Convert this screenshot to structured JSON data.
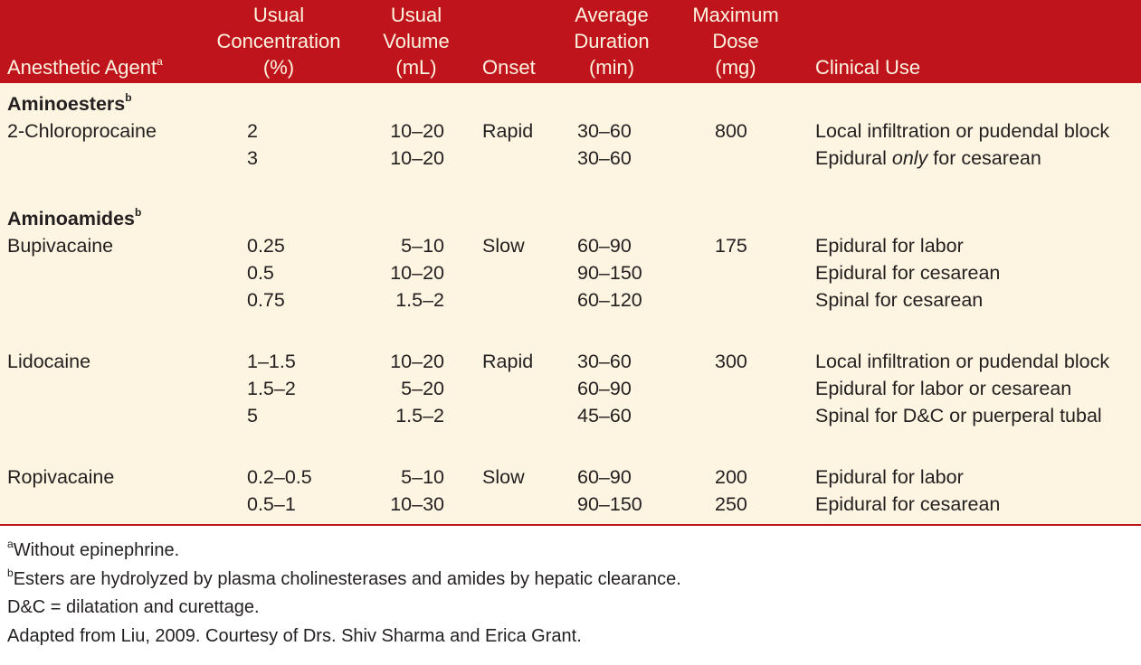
{
  "header": {
    "agent": "Anesthetic Agent",
    "agent_sup": "a",
    "conc": [
      "Usual",
      "Concentration",
      "(%)"
    ],
    "vol": [
      "Usual",
      "Volume",
      "(mL)"
    ],
    "onset": "Onset",
    "dur": [
      "Average",
      "Duration",
      "(min)"
    ],
    "max": [
      "Maximum",
      "Dose",
      "(mg)"
    ],
    "use": "Clinical Use"
  },
  "groups": [
    {
      "title": "Aminoesters",
      "sup": "b",
      "agents": [
        {
          "name": "2-Chloroprocaine",
          "onset": "Rapid",
          "rows": [
            {
              "conc": "2",
              "vol": "10–20",
              "dur": "30–60",
              "max": "800",
              "use": "Local infiltration or pudendal block"
            },
            {
              "conc": "3",
              "vol": "10–20",
              "dur": "30–60",
              "max": "",
              "use_pre": "Epidural ",
              "use_em": "only",
              "use_post": " for cesarean"
            }
          ]
        }
      ]
    },
    {
      "title": "Aminoamides",
      "sup": "b",
      "agents": [
        {
          "name": "Bupivacaine",
          "onset": "Slow",
          "rows": [
            {
              "conc": "0.25",
              "vol": "5–10",
              "dur": "60–90",
              "max": "175",
              "use": "Epidural for labor"
            },
            {
              "conc": "0.5",
              "vol": "10–20",
              "dur": "90–150",
              "max": "",
              "use": "Epidural for cesarean"
            },
            {
              "conc": "0.75",
              "vol": "1.5–2",
              "dur": "60–120",
              "max": "",
              "use": "Spinal for cesarean"
            }
          ]
        },
        {
          "name": "Lidocaine",
          "onset": "Rapid",
          "rows": [
            {
              "conc": "1–1.5",
              "vol": "10–20",
              "dur": "30–60",
              "max": "300",
              "use": "Local infiltration or pudendal block"
            },
            {
              "conc": "1.5–2",
              "vol": "5–20",
              "dur": "60–90",
              "max": "",
              "use": "Epidural for labor or cesarean"
            },
            {
              "conc": "5",
              "vol": "1.5–2",
              "dur": "45–60",
              "max": "",
              "use": "Spinal for D&C or puerperal tubal"
            }
          ]
        },
        {
          "name": "Ropivacaine",
          "onset": "Slow",
          "rows": [
            {
              "conc": "0.2–0.5",
              "vol": "5–10",
              "dur": "60–90",
              "max": "200",
              "use": "Epidural for labor"
            },
            {
              "conc": "0.5–1",
              "vol": "10–30",
              "dur": "90–150",
              "max": "250",
              "use": "Epidural for cesarean"
            }
          ]
        }
      ]
    }
  ],
  "footnotes": [
    {
      "sup": "a",
      "text": "Without epinephrine."
    },
    {
      "sup": "b",
      "text": "Esters are hydrolyzed by plasma cholinesterases and amides by hepatic clearance."
    },
    {
      "sup": "",
      "text": "D&C = dilatation and curettage."
    },
    {
      "sup": "",
      "text": "Adapted from Liu, 2009. Courtesy of Drs. Shiv Sharma and Erica Grant."
    }
  ]
}
